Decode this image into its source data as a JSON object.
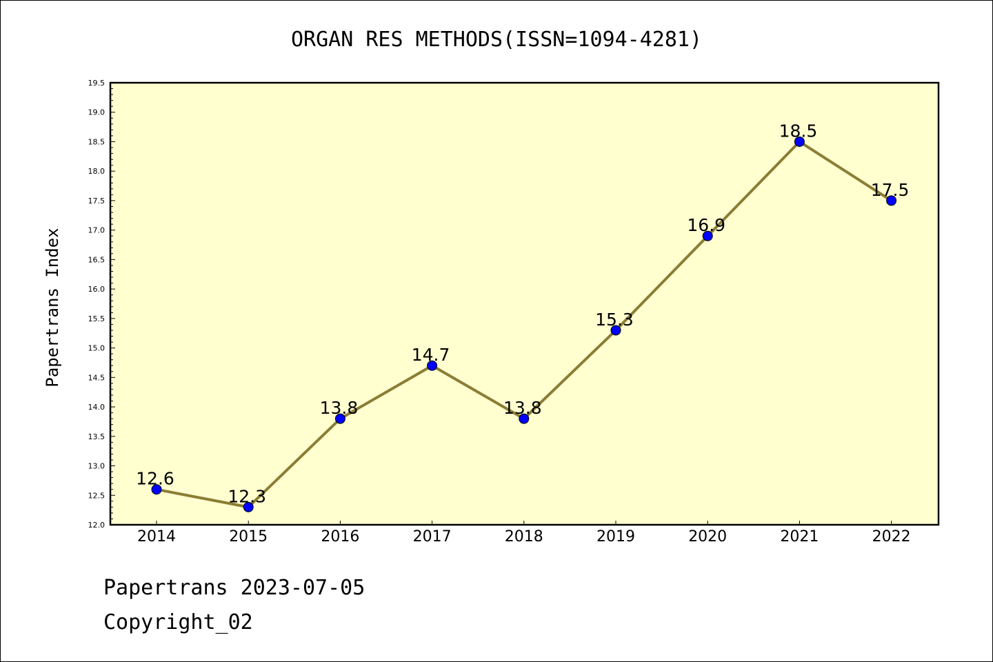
{
  "chart_data": {
    "type": "line",
    "title": "ORGAN RES METHODS(ISSN=1094-4281)",
    "ylabel": "Papertrans Index",
    "xlabel": "",
    "categories": [
      "2014",
      "2015",
      "2016",
      "2017",
      "2018",
      "2019",
      "2020",
      "2021",
      "2022"
    ],
    "series": [
      {
        "values": [
          12.6,
          12.3,
          13.8,
          14.7,
          13.8,
          15.3,
          16.9,
          18.5,
          17.5
        ]
      }
    ],
    "data_labels": [
      "12.6",
      "12.3",
      "13.8",
      "14.7",
      "13.8",
      "15.3",
      "16.9",
      "18.5",
      "17.5"
    ],
    "ylim": [
      12.0,
      19.5
    ],
    "yticks": [
      "12.0",
      "12.5",
      "13.0",
      "13.5",
      "14.0",
      "14.5",
      "15.0",
      "15.5",
      "16.0",
      "16.5",
      "17.0",
      "17.5",
      "18.0",
      "18.5",
      "19.0",
      "19.5"
    ],
    "grid": false,
    "colors": {
      "plot_background": "#ffffd0",
      "line": "#8b7d35",
      "marker": "#0000ff"
    }
  },
  "footer": {
    "date_line": "Papertrans 2023-07-05",
    "copyright": "Copyright_02"
  }
}
